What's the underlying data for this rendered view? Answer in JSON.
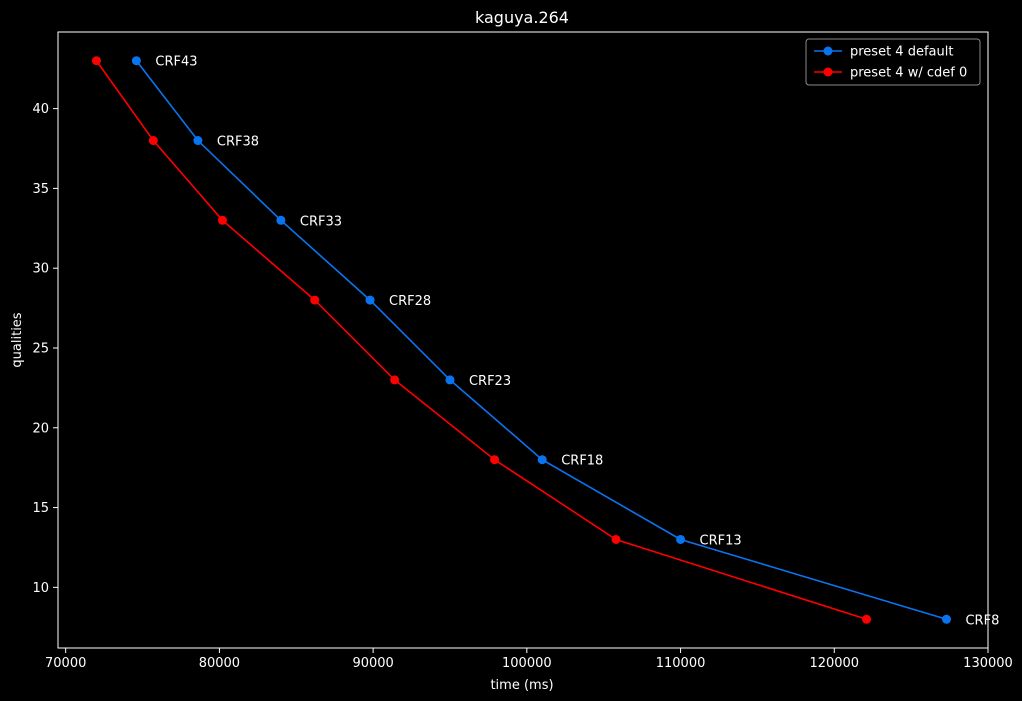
{
  "chart_data": {
    "type": "line",
    "title": "kaguya.264",
    "xlabel": "time (ms)",
    "ylabel": "qualities",
    "xlim": [
      69500,
      130000
    ],
    "ylim": [
      6.2,
      44.8
    ],
    "xticks": [
      70000,
      80000,
      90000,
      100000,
      110000,
      120000,
      130000
    ],
    "yticks": [
      10,
      15,
      20,
      25,
      30,
      35,
      40
    ],
    "grid": false,
    "legend_position": "top-right",
    "series": [
      {
        "name": "preset 4 default",
        "color": "#0a74f0",
        "x": [
          74600,
          78600,
          84000,
          89800,
          95000,
          101000,
          110000,
          127300
        ],
        "y": [
          43,
          38,
          33,
          28,
          23,
          18,
          13,
          8
        ]
      },
      {
        "name": "preset 4 w/ cdef 0",
        "color": "#ff0000",
        "x": [
          72000,
          75700,
          80200,
          86200,
          91400,
          97900,
          105800,
          122100
        ],
        "y": [
          43,
          38,
          33,
          28,
          23,
          18,
          13,
          8
        ]
      }
    ],
    "annotations": [
      {
        "text": "CRF43",
        "x": 74600,
        "y": 43
      },
      {
        "text": "CRF38",
        "x": 78600,
        "y": 38
      },
      {
        "text": "CRF33",
        "x": 84000,
        "y": 33
      },
      {
        "text": "CRF28",
        "x": 89800,
        "y": 28
      },
      {
        "text": "CRF23",
        "x": 95000,
        "y": 23
      },
      {
        "text": "CRF18",
        "x": 101000,
        "y": 18
      },
      {
        "text": "CRF13",
        "x": 110000,
        "y": 13
      },
      {
        "text": "CRF8",
        "x": 127300,
        "y": 8
      }
    ]
  }
}
